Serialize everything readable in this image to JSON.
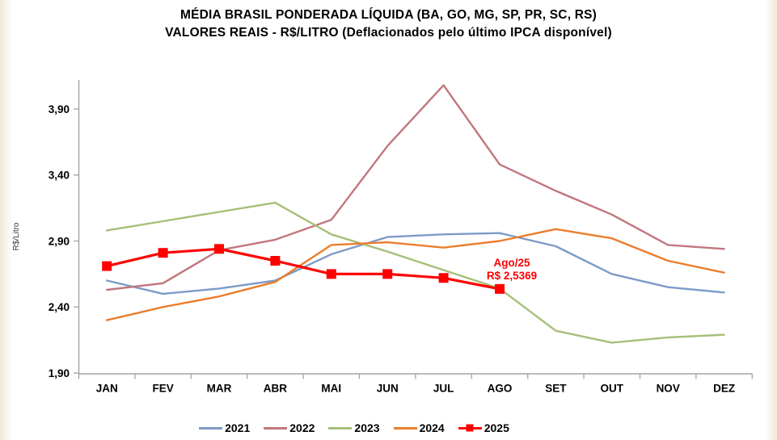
{
  "title": {
    "line1": "MÉDIA BRASIL PONDERADA LÍQUIDA (BA, GO, MG, SP, PR, SC, RS)",
    "line2": "VALORES REAIS - R$/LITRO (Deflacionados pelo último IPCA disponível)"
  },
  "chart_data": {
    "type": "line",
    "title": "MÉDIA BRASIL PONDERADA LÍQUIDA (BA, GO, MG, SP, PR, SC, RS) — VALORES REAIS - R$/LITRO (Deflacionados pelo último IPCA disponível)",
    "xlabel": "",
    "ylabel": "R$/Litro",
    "categories": [
      "JAN",
      "FEV",
      "MAR",
      "ABR",
      "MAI",
      "JUN",
      "JUL",
      "AGO",
      "SET",
      "OUT",
      "NOV",
      "DEZ"
    ],
    "yticks": {
      "values": [
        1.9,
        2.4,
        2.9,
        3.4,
        3.9
      ],
      "labels": [
        "1,90",
        "2,40",
        "2,90",
        "3,40",
        "3,90"
      ]
    },
    "ylim": [
      1.9,
      4.15
    ],
    "grid": false,
    "legend_position": "bottom",
    "axis_color": "#a3a3a3",
    "series": [
      {
        "name": "2021",
        "color": "#7d9bc7",
        "marker": "none",
        "values": [
          2.6,
          2.5,
          2.54,
          2.6,
          2.8,
          2.93,
          2.95,
          2.96,
          2.86,
          2.65,
          2.55,
          2.51
        ]
      },
      {
        "name": "2022",
        "color": "#c2767d",
        "marker": "none",
        "values": [
          2.53,
          2.58,
          2.83,
          2.91,
          3.06,
          3.62,
          4.08,
          3.48,
          3.28,
          3.1,
          2.87,
          2.84
        ]
      },
      {
        "name": "2023",
        "color": "#a6bf79",
        "marker": "none",
        "values": [
          2.98,
          3.05,
          3.12,
          3.19,
          2.95,
          2.82,
          2.68,
          2.54,
          2.22,
          2.13,
          2.17,
          2.19
        ]
      },
      {
        "name": "2024",
        "color": "#ec7d2d",
        "marker": "none",
        "values": [
          2.3,
          2.4,
          2.48,
          2.59,
          2.87,
          2.89,
          2.85,
          2.9,
          2.99,
          2.92,
          2.75,
          2.66
        ]
      },
      {
        "name": "2025",
        "color": "#fe0000",
        "marker": "square",
        "values": [
          2.71,
          2.81,
          2.84,
          2.75,
          2.65,
          2.65,
          2.62,
          2.5369,
          null,
          null,
          null,
          null
        ]
      }
    ],
    "annotation": {
      "line1": "Ago/25",
      "line2": "R$ 2,5369",
      "color": "#fe0000",
      "series": "2025",
      "month_index": 7
    }
  },
  "legend": {
    "items": [
      "2021",
      "2022",
      "2023",
      "2024",
      "2025"
    ]
  }
}
